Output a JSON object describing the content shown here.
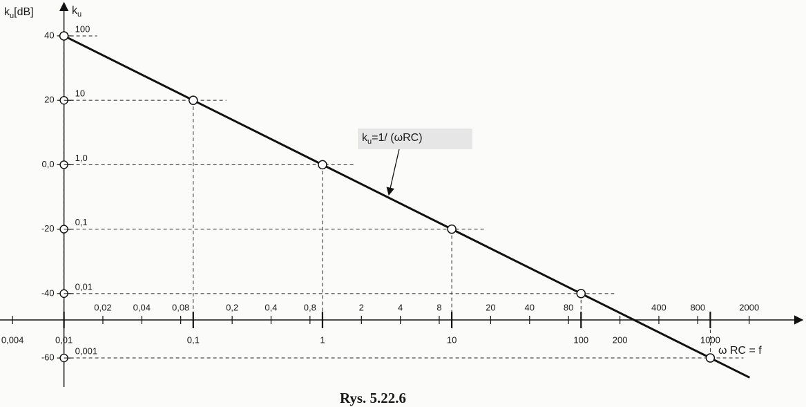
{
  "chart_data": {
    "type": "line",
    "title": "Rys. 5.22.6",
    "x_label": "ω RC = f",
    "y_label": {
      "symbol": "k",
      "subscript": "u",
      "unit": "[dB]"
    },
    "y2_label": {
      "symbol": "k",
      "subscript": "u"
    },
    "annotation": {
      "symbol": "k",
      "subscript": "u",
      "text": "=1/ (ωRC)"
    },
    "x": [
      0.01,
      0.1,
      1,
      10,
      100,
      1000
    ],
    "series": [
      {
        "name": "k_u",
        "color": "#111111",
        "values": [
          40,
          20,
          0,
          -20,
          -40,
          -60
        ]
      }
    ],
    "xlim": [
      0.0032,
      5500
    ],
    "xlog": true,
    "ylim": [
      -69,
      49
    ],
    "y2lim": [
      0.000355,
      282
    ],
    "y2log": true,
    "xticks_below": [
      {
        "value": 0.004,
        "label": "0,004"
      },
      {
        "value": 0.01,
        "label": "0,01"
      },
      {
        "value": 0.1,
        "label": "0,1"
      },
      1,
      10,
      100,
      200,
      1000
    ],
    "xticks_above": [
      {
        "value": 0.02,
        "label": "0,02"
      },
      {
        "value": 0.04,
        "label": "0,04"
      },
      {
        "value": 0.08,
        "label": "0,08"
      },
      {
        "value": 0.2,
        "label": "0,2"
      },
      {
        "value": 0.4,
        "label": "0,4"
      },
      {
        "value": 0.8,
        "label": "0,8"
      },
      2,
      4,
      8,
      20,
      40,
      80,
      400,
      800,
      2000
    ],
    "yticks": [
      40,
      20,
      {
        "value": 0,
        "label": "0,0"
      },
      -20,
      -40,
      -60
    ],
    "y2ticks": [
      100,
      10,
      {
        "value": 1,
        "label": "1,0"
      },
      {
        "value": 0.1,
        "label": "0,1"
      },
      {
        "value": 0.01,
        "label": "0,01"
      },
      {
        "value": 0.001,
        "label": "0,001"
      }
    ],
    "guide_lines": "dashed"
  }
}
